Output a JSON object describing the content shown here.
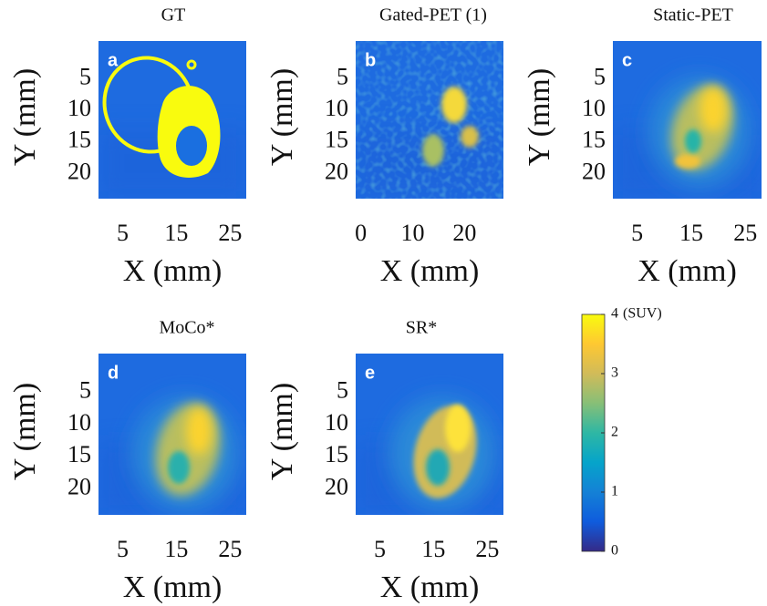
{
  "chart_data": [
    {
      "type": "image",
      "title": "GT",
      "panel_label": "a",
      "xlabel": "X (mm)",
      "ylabel": "Y (mm)",
      "xlim": [
        0.5,
        28
      ],
      "ylim": [
        -1,
        24
      ],
      "xticks": [
        5,
        15,
        25
      ],
      "yticks": [
        5,
        10,
        15,
        20
      ]
    },
    {
      "type": "image",
      "title": "Gated-PET (1)",
      "panel_label": "b",
      "xlabel": "X (mm)",
      "ylabel": "Y (mm)",
      "xlim": [
        -1,
        27.5
      ],
      "ylim": [
        -1,
        24
      ],
      "xticks": [
        0,
        10,
        20
      ],
      "yticks": [
        5,
        10,
        15,
        20
      ]
    },
    {
      "type": "image",
      "title": "Static-PET",
      "panel_label": "c",
      "xlabel": "X (mm)",
      "ylabel": "Y (mm)",
      "xlim": [
        0.5,
        28
      ],
      "ylim": [
        -1,
        24
      ],
      "xticks": [
        5,
        15,
        25
      ],
      "yticks": [
        5,
        10,
        15,
        20
      ]
    },
    {
      "type": "image",
      "title": "MoCo*",
      "panel_label": "d",
      "xlabel": "X (mm)",
      "ylabel": "Y (mm)",
      "xlim": [
        0.5,
        28
      ],
      "ylim": [
        -1,
        24
      ],
      "xticks": [
        5,
        15,
        25
      ],
      "yticks": [
        5,
        10,
        15,
        20
      ]
    },
    {
      "type": "image",
      "title": "SR*",
      "panel_label": "e",
      "xlabel": "X (mm)",
      "ylabel": "Y (mm)",
      "xlim": [
        0.5,
        28
      ],
      "ylim": [
        -1,
        24
      ],
      "xticks": [
        5,
        15,
        25
      ],
      "yticks": [
        5,
        10,
        15,
        20
      ]
    },
    {
      "type": "colorbar",
      "unit": "(SUV)",
      "ylim": [
        0,
        4
      ],
      "yticks": [
        0,
        1,
        2,
        3,
        4
      ],
      "colors": [
        "#352a87",
        "#0f5cdd",
        "#1481d6",
        "#06a4ca",
        "#2eb7a4",
        "#87bf77",
        "#d1bb59",
        "#fec832",
        "#f9fb0e"
      ]
    }
  ]
}
